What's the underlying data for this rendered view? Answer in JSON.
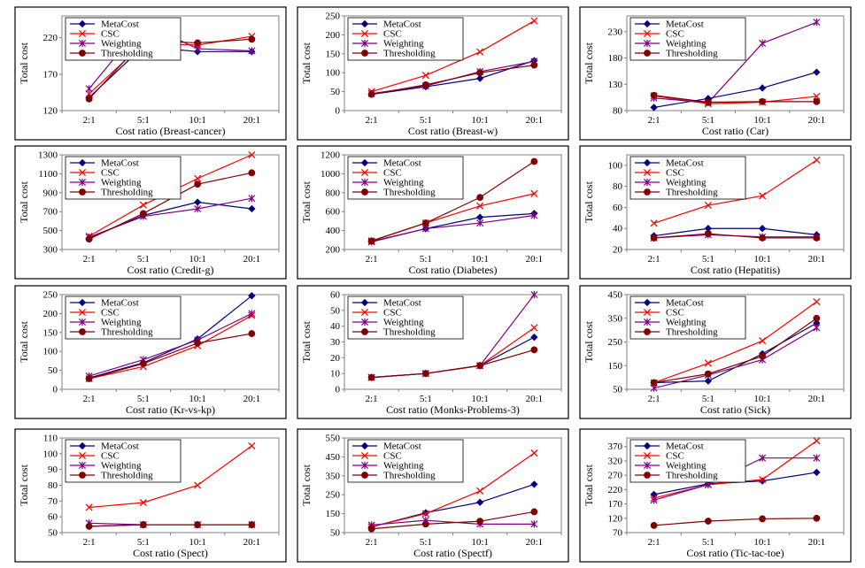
{
  "legend_labels": [
    "MetaCost",
    "CSC",
    "Weighting",
    "Thresholding"
  ],
  "series_colors": [
    "#000080",
    "#FF0000",
    "#800080",
    "#800000"
  ],
  "series_markers": [
    "diamond",
    "x",
    "asterisk",
    "circle"
  ],
  "chart_data": [
    {
      "type": "line",
      "xlabel": "Cost ratio (Breast-cancer)",
      "ylabel": "Total cost",
      "categories": [
        "2:1",
        "5:1",
        "10:1",
        "20:1"
      ],
      "ylim": [
        120,
        250
      ],
      "yticks": [
        120,
        170,
        220
      ],
      "series": [
        {
          "name": "MetaCost",
          "values": [
            138,
            208,
            201,
            201
          ]
        },
        {
          "name": "CSC",
          "values": [
            143,
            212,
            210,
            222
          ]
        },
        {
          "name": "Weighting",
          "values": [
            150,
            240,
            205,
            202
          ]
        },
        {
          "name": "Thresholding",
          "values": [
            136,
            216,
            213,
            218
          ]
        }
      ]
    },
    {
      "type": "line",
      "xlabel": "Cost ratio (Breast-w)",
      "ylabel": "Total cost",
      "categories": [
        "2:1",
        "5:1",
        "10:1",
        "20:1"
      ],
      "ylim": [
        0,
        250
      ],
      "yticks": [
        0,
        50,
        100,
        150,
        200,
        250
      ],
      "series": [
        {
          "name": "MetaCost",
          "values": [
            43,
            63,
            85,
            132
          ]
        },
        {
          "name": "CSC",
          "values": [
            50,
            93,
            155,
            237
          ]
        },
        {
          "name": "Weighting",
          "values": [
            45,
            65,
            103,
            130
          ]
        },
        {
          "name": "Thresholding",
          "values": [
            43,
            68,
            100,
            120
          ]
        }
      ]
    },
    {
      "type": "line",
      "xlabel": "Cost ratio (Car)",
      "ylabel": "Total cost",
      "categories": [
        "2:1",
        "5:1",
        "10:1",
        "20:1"
      ],
      "ylim": [
        80,
        260
      ],
      "yticks": [
        80,
        130,
        180,
        230
      ],
      "series": [
        {
          "name": "MetaCost",
          "values": [
            86,
            103,
            123,
            153
          ]
        },
        {
          "name": "CSC",
          "values": [
            108,
            93,
            96,
            107
          ]
        },
        {
          "name": "Weighting",
          "values": [
            104,
            95,
            208,
            248
          ]
        },
        {
          "name": "Thresholding",
          "values": [
            109,
            96,
            97,
            97
          ]
        }
      ]
    },
    {
      "type": "line",
      "xlabel": "Cost ratio (Credit-g)",
      "ylabel": "Total cost",
      "categories": [
        "2:1",
        "5:1",
        "10:1",
        "20:1"
      ],
      "ylim": [
        300,
        1300
      ],
      "yticks": [
        300,
        500,
        700,
        900,
        1100,
        1300
      ],
      "series": [
        {
          "name": "MetaCost",
          "values": [
            420,
            660,
            800,
            730
          ]
        },
        {
          "name": "CSC",
          "values": [
            440,
            770,
            1050,
            1300
          ]
        },
        {
          "name": "Weighting",
          "values": [
            430,
            650,
            730,
            840
          ]
        },
        {
          "name": "Thresholding",
          "values": [
            410,
            680,
            990,
            1110
          ]
        }
      ]
    },
    {
      "type": "line",
      "xlabel": "Cost ratio (Diabetes)",
      "ylabel": "Total cost",
      "categories": [
        "2:1",
        "5:1",
        "10:1",
        "20:1"
      ],
      "ylim": [
        200,
        1200
      ],
      "yticks": [
        200,
        400,
        600,
        800,
        1000,
        1200
      ],
      "series": [
        {
          "name": "MetaCost",
          "values": [
            285,
            420,
            540,
            580
          ]
        },
        {
          "name": "CSC",
          "values": [
            290,
            480,
            660,
            790
          ]
        },
        {
          "name": "Weighting",
          "values": [
            280,
            420,
            480,
            560
          ]
        },
        {
          "name": "Thresholding",
          "values": [
            290,
            480,
            750,
            1130
          ]
        }
      ]
    },
    {
      "type": "line",
      "xlabel": "Cost ratio (Hepatitis)",
      "ylabel": "Total cost",
      "categories": [
        "2:1",
        "5:1",
        "10:1",
        "20:1"
      ],
      "ylim": [
        20,
        110
      ],
      "yticks": [
        20,
        40,
        60,
        80,
        100
      ],
      "series": [
        {
          "name": "MetaCost",
          "values": [
            33,
            40,
            40,
            34
          ]
        },
        {
          "name": "CSC",
          "values": [
            45,
            62,
            71,
            105
          ]
        },
        {
          "name": "Weighting",
          "values": [
            31,
            34,
            32,
            32
          ]
        },
        {
          "name": "Thresholding",
          "values": [
            31,
            35,
            31,
            31
          ]
        }
      ]
    },
    {
      "type": "line",
      "xlabel": "Cost ratio (Kr-vs-kp)",
      "ylabel": "Total cost",
      "categories": [
        "2:1",
        "5:1",
        "10:1",
        "20:1"
      ],
      "ylim": [
        0,
        250
      ],
      "yticks": [
        0,
        50,
        100,
        150,
        200,
        250
      ],
      "series": [
        {
          "name": "MetaCost",
          "values": [
            30,
            70,
            133,
            247
          ]
        },
        {
          "name": "CSC",
          "values": [
            28,
            60,
            115,
            195
          ]
        },
        {
          "name": "Weighting",
          "values": [
            35,
            78,
            130,
            200
          ]
        },
        {
          "name": "Thresholding",
          "values": [
            28,
            68,
            122,
            147
          ]
        }
      ]
    },
    {
      "type": "line",
      "xlabel": "Cost ratio (Monks-Problems-3)",
      "ylabel": "Total cost",
      "categories": [
        "2:1",
        "5:1",
        "10:1",
        "20:1"
      ],
      "ylim": [
        0,
        60
      ],
      "yticks": [
        0,
        10,
        20,
        30,
        40,
        50,
        60
      ],
      "series": [
        {
          "name": "MetaCost",
          "values": [
            7.5,
            10,
            15,
            33
          ]
        },
        {
          "name": "CSC",
          "values": [
            7.5,
            10,
            15,
            39
          ]
        },
        {
          "name": "Weighting",
          "values": [
            7.5,
            10,
            15,
            60
          ]
        },
        {
          "name": "Thresholding",
          "values": [
            7.5,
            10,
            15,
            25
          ]
        }
      ]
    },
    {
      "type": "line",
      "xlabel": "Cost ratio (Sick)",
      "ylabel": "Total cost",
      "categories": [
        "2:1",
        "5:1",
        "10:1",
        "20:1"
      ],
      "ylim": [
        50,
        450
      ],
      "yticks": [
        50,
        150,
        250,
        350,
        450
      ],
      "series": [
        {
          "name": "MetaCost",
          "values": [
            78,
            85,
            200,
            330
          ]
        },
        {
          "name": "CSC",
          "values": [
            78,
            160,
            255,
            420
          ]
        },
        {
          "name": "Weighting",
          "values": [
            55,
            110,
            175,
            310
          ]
        },
        {
          "name": "Thresholding",
          "values": [
            78,
            115,
            190,
            350
          ]
        }
      ]
    },
    {
      "type": "line",
      "xlabel": "Cost ratio (Spect)",
      "ylabel": "Total cost",
      "categories": [
        "2:1",
        "5:1",
        "10:1",
        "20:1"
      ],
      "ylim": [
        50,
        110
      ],
      "yticks": [
        50,
        60,
        70,
        80,
        90,
        100,
        110
      ],
      "series": [
        {
          "name": "MetaCost",
          "values": [
            54,
            55,
            55,
            55
          ]
        },
        {
          "name": "CSC",
          "values": [
            66,
            69,
            80,
            105
          ]
        },
        {
          "name": "Weighting",
          "values": [
            56,
            55,
            55,
            55
          ]
        },
        {
          "name": "Thresholding",
          "values": [
            54,
            55,
            55,
            55
          ]
        }
      ]
    },
    {
      "type": "line",
      "xlabel": "Cost ratio (Spectf)",
      "ylabel": "Total cost",
      "categories": [
        "2:1",
        "5:1",
        "10:1",
        "20:1"
      ],
      "ylim": [
        50,
        550
      ],
      "yticks": [
        50,
        150,
        250,
        350,
        450,
        550
      ],
      "series": [
        {
          "name": "MetaCost",
          "values": [
            80,
            155,
            210,
            305
          ]
        },
        {
          "name": "CSC",
          "values": [
            80,
            150,
            270,
            470
          ]
        },
        {
          "name": "Weighting",
          "values": [
            90,
            115,
            95,
            95
          ]
        },
        {
          "name": "Thresholding",
          "values": [
            70,
            95,
            110,
            160
          ]
        }
      ]
    },
    {
      "type": "line",
      "xlabel": "Cost ratio (Tic-tac-toe)",
      "ylabel": "Total cost",
      "categories": [
        "2:1",
        "5:1",
        "10:1",
        "20:1"
      ],
      "ylim": [
        70,
        400
      ],
      "yticks": [
        70,
        120,
        170,
        220,
        270,
        320,
        370
      ],
      "series": [
        {
          "name": "MetaCost",
          "values": [
            203,
            240,
            250,
            280
          ]
        },
        {
          "name": "CSC",
          "values": [
            190,
            237,
            255,
            390
          ]
        },
        {
          "name": "Weighting",
          "values": [
            183,
            237,
            330,
            330
          ]
        },
        {
          "name": "Thresholding",
          "values": [
            95,
            110,
            118,
            120
          ]
        }
      ]
    }
  ]
}
